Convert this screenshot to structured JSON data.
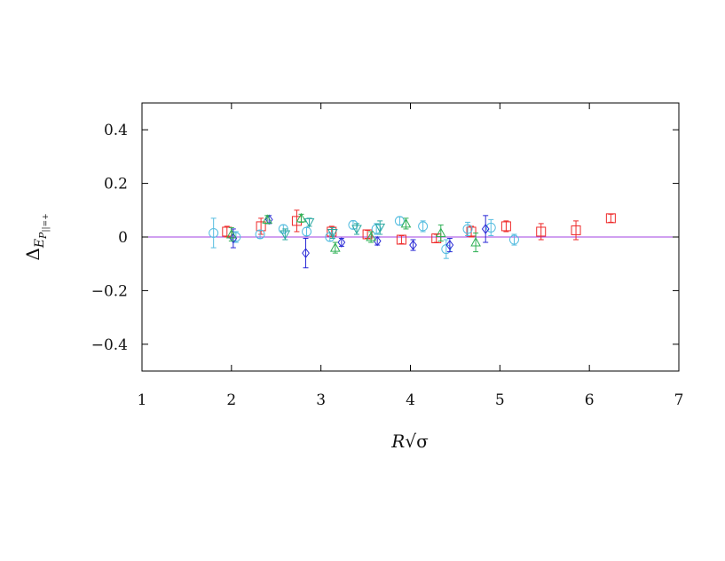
{
  "chart_data": {
    "type": "scatter",
    "xlabel": "R√σ",
    "ylabel": "Δ_{E_{P||=+}}",
    "xlim": [
      1,
      7
    ],
    "ylim": [
      -0.5,
      0.5
    ],
    "xticks": [
      1,
      2,
      3,
      4,
      5,
      6,
      7
    ],
    "yticks": [
      -0.4,
      -0.2,
      0,
      0.2,
      0.4
    ],
    "ytick_labels": [
      "−0.4",
      "−0.2",
      "0",
      "0.2",
      "0.4"
    ],
    "reference_line": {
      "y": 0,
      "color": "#a040e0"
    },
    "grid": false,
    "legend": "none",
    "series": [
      {
        "marker": "square",
        "color": "#ee2a2a",
        "points": [
          {
            "x": 1.95,
            "y": 0.02,
            "err": 0.02
          },
          {
            "x": 2.33,
            "y": 0.04,
            "err": 0.03
          },
          {
            "x": 2.73,
            "y": 0.06,
            "err": 0.04
          },
          {
            "x": 3.12,
            "y": 0.02,
            "err": 0.02
          },
          {
            "x": 3.52,
            "y": 0.01,
            "err": 0.015
          },
          {
            "x": 3.9,
            "y": -0.01,
            "err": 0.015
          },
          {
            "x": 4.29,
            "y": -0.005,
            "err": 0.015
          },
          {
            "x": 4.68,
            "y": 0.02,
            "err": 0.02
          },
          {
            "x": 5.07,
            "y": 0.04,
            "err": 0.02
          },
          {
            "x": 5.46,
            "y": 0.02,
            "err": 0.03
          },
          {
            "x": 5.85,
            "y": 0.025,
            "err": 0.035
          },
          {
            "x": 6.24,
            "y": 0.07,
            "err": 0.015
          }
        ]
      },
      {
        "marker": "circle",
        "color": "#55bde0",
        "points": [
          {
            "x": 1.8,
            "y": 0.015,
            "err": 0.055
          },
          {
            "x": 2.05,
            "y": 0.0,
            "err": 0.02
          },
          {
            "x": 2.32,
            "y": 0.01,
            "err": 0.015
          },
          {
            "x": 2.58,
            "y": 0.03,
            "err": 0.015
          },
          {
            "x": 2.84,
            "y": 0.02,
            "err": 0.015
          },
          {
            "x": 3.1,
            "y": 0.0,
            "err": 0.015
          },
          {
            "x": 3.36,
            "y": 0.045,
            "err": 0.015
          },
          {
            "x": 3.62,
            "y": 0.03,
            "err": 0.02
          },
          {
            "x": 3.88,
            "y": 0.06,
            "err": 0.015
          },
          {
            "x": 4.14,
            "y": 0.04,
            "err": 0.02
          },
          {
            "x": 4.4,
            "y": -0.045,
            "err": 0.035
          },
          {
            "x": 4.64,
            "y": 0.03,
            "err": 0.025
          },
          {
            "x": 4.9,
            "y": 0.035,
            "err": 0.03
          },
          {
            "x": 5.16,
            "y": -0.01,
            "err": 0.02
          }
        ]
      },
      {
        "marker": "diamond",
        "color": "#2a2ad6",
        "points": [
          {
            "x": 2.02,
            "y": -0.005,
            "err": 0.035
          },
          {
            "x": 2.42,
            "y": 0.065,
            "err": 0.015
          },
          {
            "x": 2.83,
            "y": -0.06,
            "err": 0.055
          },
          {
            "x": 3.23,
            "y": -0.02,
            "err": 0.015
          },
          {
            "x": 3.63,
            "y": -0.015,
            "err": 0.015
          },
          {
            "x": 4.03,
            "y": -0.03,
            "err": 0.02
          },
          {
            "x": 4.44,
            "y": -0.03,
            "err": 0.025
          },
          {
            "x": 4.84,
            "y": 0.03,
            "err": 0.05
          }
        ]
      },
      {
        "marker": "triangle",
        "color": "#2fb055",
        "points": [
          {
            "x": 2.0,
            "y": 0.01,
            "err": 0.025
          },
          {
            "x": 2.4,
            "y": 0.065,
            "err": 0.015
          },
          {
            "x": 2.78,
            "y": 0.07,
            "err": 0.015
          },
          {
            "x": 3.16,
            "y": -0.04,
            "err": 0.02
          },
          {
            "x": 3.56,
            "y": 0.0,
            "err": 0.02
          },
          {
            "x": 3.95,
            "y": 0.05,
            "err": 0.02
          },
          {
            "x": 4.34,
            "y": 0.015,
            "err": 0.03
          },
          {
            "x": 4.73,
            "y": -0.02,
            "err": 0.035
          }
        ]
      },
      {
        "marker": "triangle-down",
        "color": "#2aa8a0",
        "points": [
          {
            "x": 2.6,
            "y": 0.01,
            "err": 0.02
          },
          {
            "x": 2.87,
            "y": 0.055,
            "err": 0.015
          },
          {
            "x": 3.13,
            "y": 0.015,
            "err": 0.02
          },
          {
            "x": 3.4,
            "y": 0.03,
            "err": 0.02
          },
          {
            "x": 3.66,
            "y": 0.035,
            "err": 0.025
          }
        ]
      }
    ]
  }
}
